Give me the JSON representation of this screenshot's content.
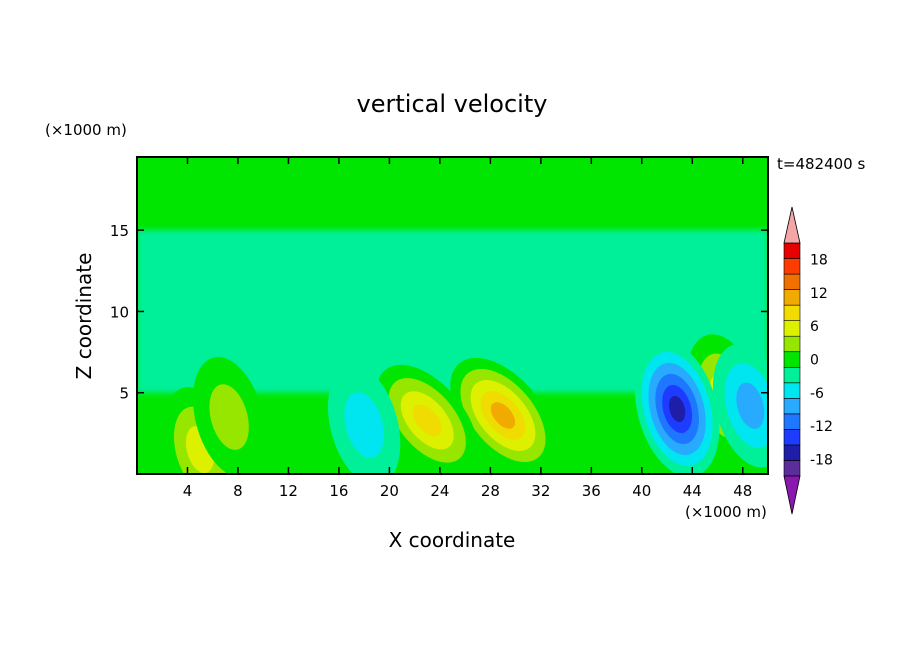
{
  "chart_data": {
    "type": "heatmap",
    "title": "vertical velocity",
    "xlabel": "X coordinate",
    "ylabel": "Z coordinate",
    "x_unit": "(×1000 m)",
    "y_unit": "(×1000 m)",
    "time_label": "t=482400 s",
    "xlim": [
      0,
      50
    ],
    "ylim": [
      0,
      19.5
    ],
    "x_ticks": [
      "4",
      "8",
      "12",
      "16",
      "20",
      "24",
      "28",
      "32",
      "36",
      "40",
      "44",
      "48"
    ],
    "y_ticks": [
      "5",
      "10",
      "15"
    ],
    "colorbar": {
      "levels": [
        -21,
        -18,
        -15,
        -12,
        -9,
        -6,
        -3,
        0,
        3,
        6,
        9,
        12,
        15,
        18,
        21
      ],
      "tick_labels": [
        "-18",
        "-12",
        "-6",
        "0",
        "6",
        "12",
        "18"
      ],
      "tick_values": [
        -18,
        -12,
        -6,
        0,
        6,
        12,
        18
      ],
      "colors": [
        "#5a2d9a",
        "#1e1ea8",
        "#1e3cff",
        "#1e78ff",
        "#28aaff",
        "#00e6f0",
        "#00f09a",
        "#00e600",
        "#96e600",
        "#dcf000",
        "#f0dc00",
        "#f0aa00",
        "#f07000",
        "#ff3c00",
        "#e60000"
      ],
      "under_color": "#8a18b0",
      "over_color": "#f4a5a5"
    },
    "features": [
      {
        "kind": "updraft",
        "x": 29.0,
        "z": 3.6,
        "peak": 13
      },
      {
        "kind": "updraft",
        "x": 23.0,
        "z": 3.3,
        "peak": 10
      },
      {
        "kind": "updraft",
        "x": 5.0,
        "z": 1.5,
        "peak": 8
      },
      {
        "kind": "updraft",
        "x": 46.5,
        "z": 4.8,
        "peak": 7
      },
      {
        "kind": "updraft",
        "x": 7.3,
        "z": 3.5,
        "peak": 5
      },
      {
        "kind": "downdraft",
        "x": 42.8,
        "z": 4.0,
        "peak": -15
      },
      {
        "kind": "downdraft",
        "x": 48.6,
        "z": 4.2,
        "peak": -7
      },
      {
        "kind": "downdraft",
        "x": 18.0,
        "z": 3.0,
        "peak": -5
      }
    ]
  }
}
